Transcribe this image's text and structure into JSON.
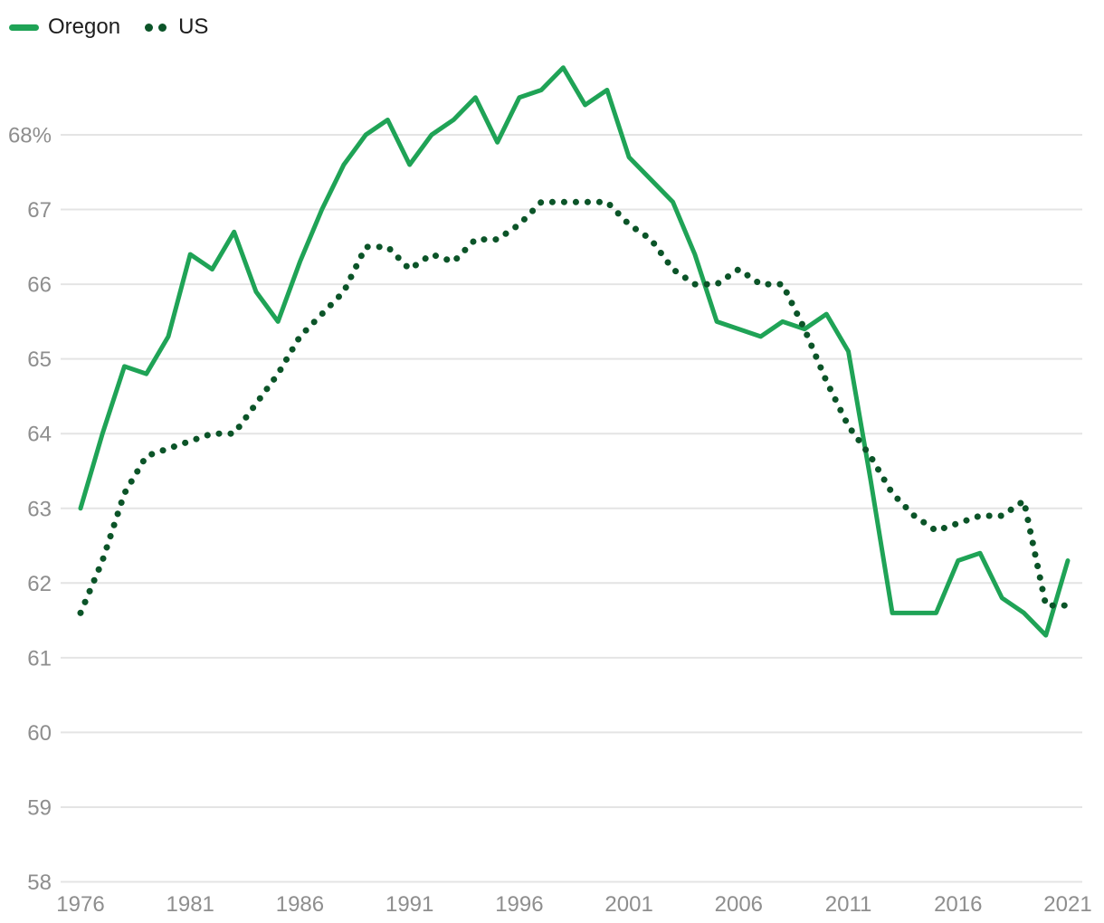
{
  "chart_data": {
    "type": "line",
    "title": "",
    "xlabel": "",
    "ylabel": "",
    "grid": true,
    "legend_position": "top-left",
    "ylim": [
      58,
      69.2
    ],
    "xlim": [
      1976,
      2021
    ],
    "x": [
      1976,
      1977,
      1978,
      1979,
      1980,
      1981,
      1982,
      1983,
      1984,
      1985,
      1986,
      1987,
      1988,
      1989,
      1990,
      1991,
      1992,
      1993,
      1994,
      1995,
      1996,
      1997,
      1998,
      1999,
      2000,
      2001,
      2002,
      2003,
      2004,
      2005,
      2006,
      2007,
      2008,
      2009,
      2010,
      2011,
      2012,
      2013,
      2014,
      2015,
      2016,
      2017,
      2018,
      2019,
      2020,
      2021
    ],
    "series": [
      {
        "name": "Oregon",
        "style": "solid",
        "color": "#1FA356",
        "values": [
          63.0,
          64.0,
          64.9,
          64.8,
          65.3,
          66.4,
          66.2,
          66.7,
          65.9,
          65.5,
          66.3,
          67.0,
          67.6,
          68.0,
          68.2,
          67.6,
          68.0,
          68.2,
          68.5,
          67.9,
          68.5,
          68.6,
          68.9,
          68.4,
          68.6,
          67.7,
          67.4,
          67.1,
          66.4,
          65.5,
          65.4,
          65.3,
          65.5,
          65.4,
          65.6,
          65.1,
          63.4,
          61.6,
          61.6,
          61.6,
          62.3,
          62.4,
          61.8,
          61.6,
          61.3,
          62.3
        ]
      },
      {
        "name": "US",
        "style": "dotted",
        "color": "#0B5428",
        "values": [
          61.6,
          62.3,
          63.2,
          63.7,
          63.8,
          63.9,
          64.0,
          64.0,
          64.4,
          64.8,
          65.3,
          65.6,
          65.9,
          66.5,
          66.5,
          66.2,
          66.4,
          66.3,
          66.6,
          66.6,
          66.8,
          67.1,
          67.1,
          67.1,
          67.1,
          66.8,
          66.6,
          66.2,
          66.0,
          66.0,
          66.2,
          66.0,
          66.0,
          65.4,
          64.7,
          64.1,
          63.7,
          63.2,
          62.9,
          62.7,
          62.8,
          62.9,
          62.9,
          63.1,
          61.7,
          61.7
        ]
      }
    ],
    "y_ticks": [
      {
        "value": 68,
        "label": "68%"
      },
      {
        "value": 67,
        "label": "67"
      },
      {
        "value": 66,
        "label": "66"
      },
      {
        "value": 65,
        "label": "65"
      },
      {
        "value": 64,
        "label": "64"
      },
      {
        "value": 63,
        "label": "63"
      },
      {
        "value": 62,
        "label": "62"
      },
      {
        "value": 61,
        "label": "61"
      },
      {
        "value": 60,
        "label": "60"
      },
      {
        "value": 59,
        "label": "59"
      },
      {
        "value": 58,
        "label": "58"
      }
    ],
    "x_ticks": [
      {
        "value": 1976,
        "label": "1976"
      },
      {
        "value": 1981,
        "label": "1981"
      },
      {
        "value": 1986,
        "label": "1986"
      },
      {
        "value": 1991,
        "label": "1991"
      },
      {
        "value": 1996,
        "label": "1996"
      },
      {
        "value": 2001,
        "label": "2001"
      },
      {
        "value": 2006,
        "label": "2006"
      },
      {
        "value": 2011,
        "label": "2011"
      },
      {
        "value": 2016,
        "label": "2016"
      },
      {
        "value": 2021,
        "label": "2021"
      }
    ],
    "colors": {
      "background": "#FFFFFF",
      "gridline": "#E4E4E4",
      "tick_text": "#8E8E8E",
      "legend_text": "#1D1D1D"
    }
  }
}
